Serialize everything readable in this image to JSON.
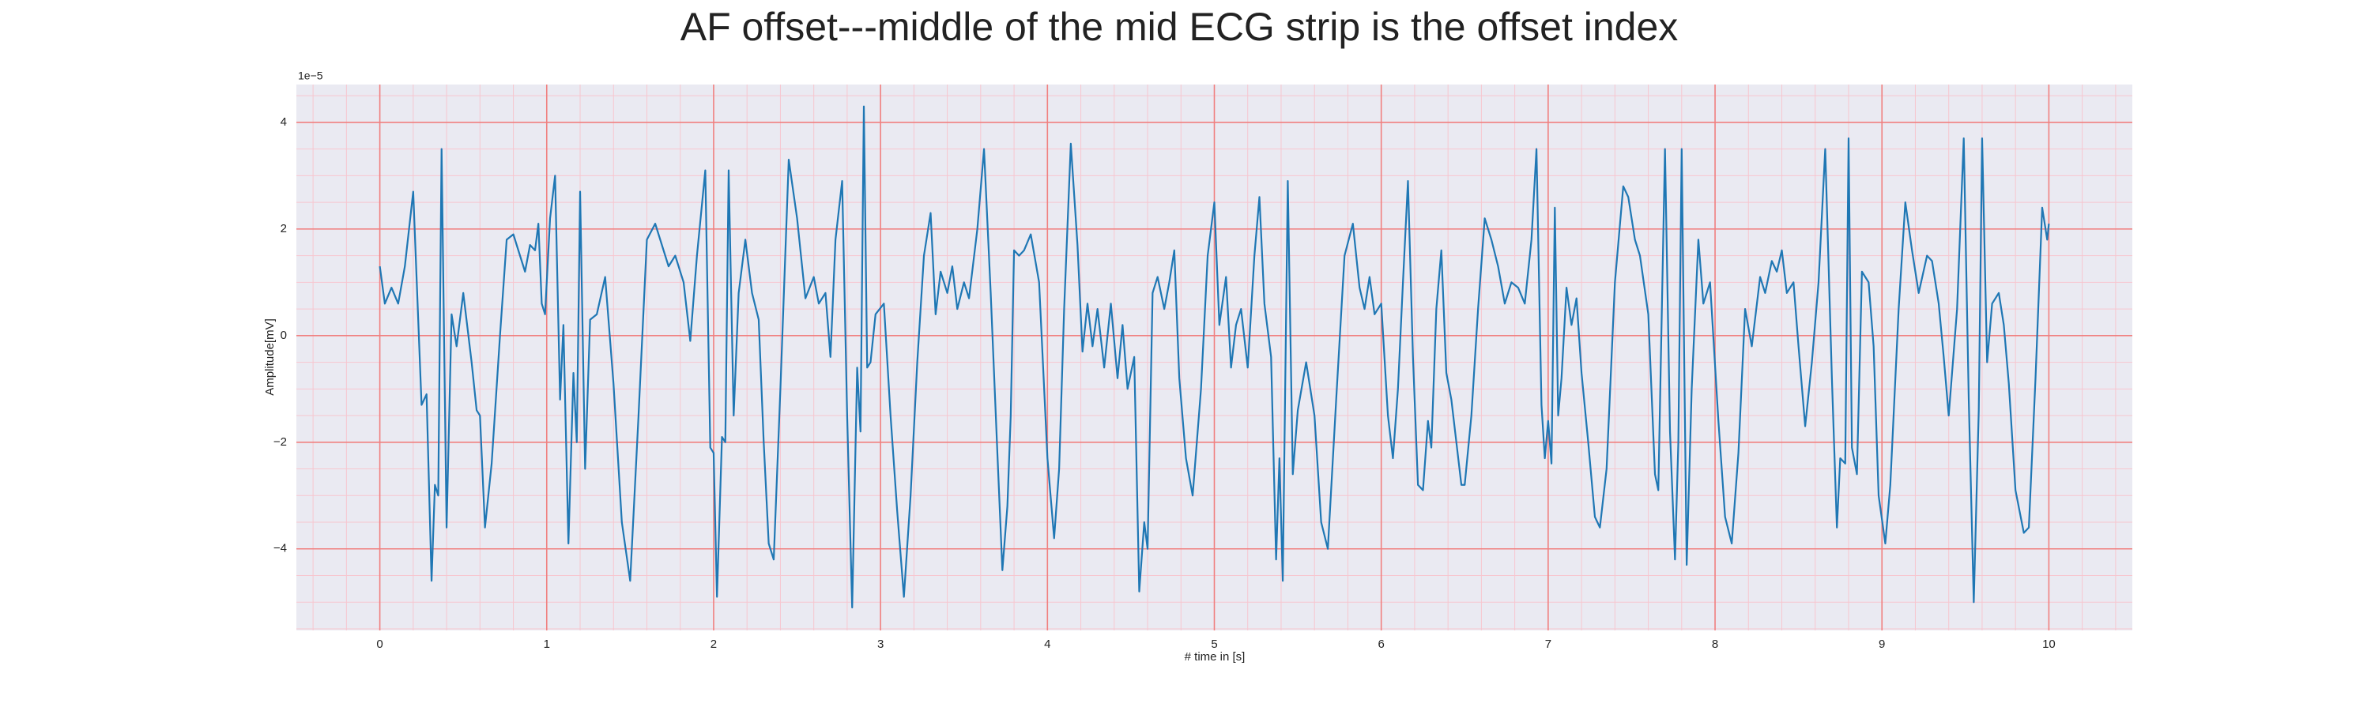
{
  "chart_data": {
    "type": "line",
    "title": "AF offset---middle of the mid ECG strip is the offset index",
    "xlabel": "# time in [s]",
    "ylabel": "Amplitude[mV]",
    "y_offset_label": "1e−5",
    "color": "#1f77b4",
    "grid": true,
    "grid_color": "#f08080",
    "minor_grid": true,
    "minor_grid_color": "#f7c6cf",
    "xminor_step": 0.2,
    "yminor_step": 0.5,
    "background": "#eaeaf2",
    "xlim": [
      -0.5,
      10.5
    ],
    "ylim": [
      -5.53,
      4.71
    ],
    "xticks": [
      0,
      1,
      2,
      3,
      4,
      5,
      6,
      7,
      8,
      9,
      10
    ],
    "yticks": [
      {
        "value": -4,
        "label": "−4"
      },
      {
        "value": -2,
        "label": "−2"
      },
      0,
      2,
      4
    ],
    "x": [
      0,
      0.03,
      0.07,
      0.11,
      0.15,
      0.2,
      0.25,
      0.28,
      0.31,
      0.33,
      0.35,
      0.37,
      0.4,
      0.43,
      0.46,
      0.5,
      0.55,
      0.58,
      0.6,
      0.63,
      0.67,
      0.72,
      0.76,
      0.8,
      0.84,
      0.87,
      0.9,
      0.93,
      0.95,
      0.97,
      0.99,
      1.02,
      1.05,
      1.08,
      1.1,
      1.13,
      1.16,
      1.18,
      1.2,
      1.23,
      1.26,
      1.3,
      1.35,
      1.4,
      1.45,
      1.5,
      1.55,
      1.6,
      1.65,
      1.7,
      1.73,
      1.77,
      1.82,
      1.86,
      1.9,
      1.95,
      1.98,
      2.0,
      2.02,
      2.05,
      2.07,
      2.09,
      2.12,
      2.15,
      2.19,
      2.23,
      2.27,
      2.3,
      2.33,
      2.36,
      2.4,
      2.45,
      2.5,
      2.55,
      2.6,
      2.63,
      2.67,
      2.7,
      2.73,
      2.77,
      2.8,
      2.83,
      2.86,
      2.88,
      2.9,
      2.92,
      2.94,
      2.97,
      3.02,
      3.06,
      3.1,
      3.14,
      3.18,
      3.22,
      3.26,
      3.3,
      3.33,
      3.36,
      3.4,
      3.43,
      3.46,
      3.5,
      3.53,
      3.58,
      3.62,
      3.66,
      3.7,
      3.73,
      3.76,
      3.78,
      3.8,
      3.83,
      3.86,
      3.9,
      3.95,
      4.0,
      4.04,
      4.07,
      4.1,
      4.14,
      4.18,
      4.21,
      4.24,
      4.27,
      4.3,
      4.34,
      4.38,
      4.42,
      4.45,
      4.48,
      4.52,
      4.55,
      4.58,
      4.6,
      4.63,
      4.66,
      4.7,
      4.73,
      4.76,
      4.79,
      4.83,
      4.87,
      4.92,
      4.96,
      5.0,
      5.03,
      5.07,
      5.1,
      5.13,
      5.16,
      5.2,
      5.24,
      5.27,
      5.3,
      5.34,
      5.37,
      5.39,
      5.41,
      5.44,
      5.47,
      5.5,
      5.55,
      5.6,
      5.64,
      5.68,
      5.73,
      5.78,
      5.83,
      5.87,
      5.9,
      5.93,
      5.96,
      6.0,
      6.04,
      6.07,
      6.1,
      6.13,
      6.16,
      6.19,
      6.22,
      6.25,
      6.28,
      6.3,
      6.33,
      6.36,
      6.39,
      6.42,
      6.45,
      6.48,
      6.5,
      6.54,
      6.58,
      6.62,
      6.66,
      6.7,
      6.74,
      6.78,
      6.82,
      6.86,
      6.9,
      6.93,
      6.96,
      6.98,
      7.0,
      7.02,
      7.04,
      7.06,
      7.08,
      7.11,
      7.14,
      7.17,
      7.2,
      7.24,
      7.28,
      7.31,
      7.35,
      7.4,
      7.45,
      7.48,
      7.52,
      7.55,
      7.6,
      7.64,
      7.66,
      7.7,
      7.73,
      7.76,
      7.78,
      7.8,
      7.83,
      7.86,
      7.9,
      7.93,
      7.97,
      8.02,
      8.06,
      8.1,
      8.14,
      8.18,
      8.22,
      8.27,
      8.3,
      8.34,
      8.37,
      8.4,
      8.43,
      8.47,
      8.5,
      8.54,
      8.58,
      8.62,
      8.66,
      8.7,
      8.73,
      8.75,
      8.78,
      8.8,
      8.82,
      8.85,
      8.88,
      8.92,
      8.95,
      8.98,
      9.02,
      9.05,
      9.1,
      9.14,
      9.18,
      9.22,
      9.27,
      9.3,
      9.34,
      9.37,
      9.4,
      9.45,
      9.49,
      9.52,
      9.55,
      9.58,
      9.6,
      9.63,
      9.66,
      9.7,
      9.73,
      9.76,
      9.8,
      9.85,
      9.88,
      9.92,
      9.96,
      9.99,
      10.0
    ],
    "values": [
      1.3,
      0.6,
      0.9,
      0.6,
      1.3,
      2.7,
      -1.3,
      -1.1,
      -4.6,
      -2.8,
      -3.0,
      3.5,
      -3.6,
      0.4,
      -0.2,
      0.8,
      -0.5,
      -1.4,
      -1.5,
      -3.6,
      -2.4,
      0,
      1.8,
      1.9,
      1.5,
      1.2,
      1.7,
      1.6,
      2.1,
      0.6,
      0.4,
      2.2,
      3.0,
      -1.2,
      0.2,
      -3.9,
      -0.7,
      -2.0,
      2.7,
      -2.5,
      0.3,
      0.4,
      1.1,
      -0.9,
      -3.5,
      -4.6,
      -1.5,
      1.8,
      2.1,
      1.6,
      1.3,
      1.5,
      1.0,
      -0.1,
      1.5,
      3.1,
      -2.1,
      -2.2,
      -4.9,
      -1.9,
      -2.0,
      3.1,
      -1.5,
      0.8,
      1.8,
      0.8,
      0.3,
      -2.0,
      -3.9,
      -4.2,
      -1.0,
      3.3,
      2.2,
      0.7,
      1.1,
      0.6,
      0.8,
      -0.4,
      1.8,
      2.9,
      -1.5,
      -5.1,
      -0.6,
      -1.8,
      4.3,
      -0.6,
      -0.5,
      0.4,
      0.6,
      -1.5,
      -3.3,
      -4.9,
      -3.0,
      -0.5,
      1.5,
      2.3,
      0.4,
      1.2,
      0.8,
      1.3,
      0.5,
      1.0,
      0.7,
      2.0,
      3.5,
      0.8,
      -2.2,
      -4.4,
      -3.2,
      -1.5,
      1.6,
      1.5,
      1.6,
      1.9,
      1.0,
      -2.3,
      -3.8,
      -2.5,
      0.5,
      3.6,
      1.7,
      -0.3,
      0.6,
      -0.2,
      0.5,
      -0.6,
      0.6,
      -0.8,
      0.2,
      -1.0,
      -0.4,
      -4.8,
      -3.5,
      -4.0,
      0.8,
      1.1,
      0.5,
      1.0,
      1.6,
      -0.8,
      -2.3,
      -3.0,
      -1.0,
      1.5,
      2.5,
      0.2,
      1.1,
      -0.6,
      0.2,
      0.5,
      -0.6,
      1.5,
      2.6,
      0.6,
      -0.4,
      -4.2,
      -2.3,
      -4.6,
      2.9,
      -2.6,
      -1.4,
      -0.5,
      -1.5,
      -3.5,
      -4.0,
      -1.2,
      1.5,
      2.1,
      0.9,
      0.5,
      1.1,
      0.4,
      0.6,
      -1.5,
      -2.3,
      -1.0,
      1.0,
      2.9,
      -0.4,
      -2.8,
      -2.9,
      -1.6,
      -2.1,
      0.5,
      1.6,
      -0.7,
      -1.2,
      -2.0,
      -2.8,
      -2.8,
      -1.5,
      0.5,
      2.2,
      1.8,
      1.3,
      0.6,
      1.0,
      0.9,
      0.6,
      1.8,
      3.5,
      -1.3,
      -2.3,
      -1.6,
      -2.4,
      2.4,
      -1.5,
      -0.8,
      0.9,
      0.2,
      0.7,
      -0.7,
      -2.0,
      -3.4,
      -3.6,
      -2.5,
      1.0,
      2.8,
      2.6,
      1.8,
      1.5,
      0.4,
      -2.6,
      -2.9,
      3.5,
      -1.8,
      -4.2,
      -2.0,
      3.5,
      -4.3,
      -1.0,
      1.8,
      0.6,
      1.0,
      -1.6,
      -3.4,
      -3.9,
      -2.2,
      0.5,
      -0.2,
      1.1,
      0.8,
      1.4,
      1.2,
      1.6,
      0.8,
      1.0,
      -0.2,
      -1.7,
      -0.5,
      1.0,
      3.5,
      -0.8,
      -3.6,
      -2.3,
      -2.4,
      3.7,
      -2.1,
      -2.6,
      1.2,
      1.0,
      -0.2,
      -3.0,
      -3.9,
      -2.8,
      0.5,
      2.5,
      1.6,
      0.8,
      1.5,
      1.4,
      0.6,
      -0.4,
      -1.5,
      0.5,
      3.7,
      -1.2,
      -5.0,
      -1.4,
      3.7,
      -0.5,
      0.6,
      0.8,
      0.2,
      -0.9,
      -2.9,
      -3.7,
      -3.6,
      -0.8,
      2.4,
      1.8,
      2.1
    ]
  }
}
